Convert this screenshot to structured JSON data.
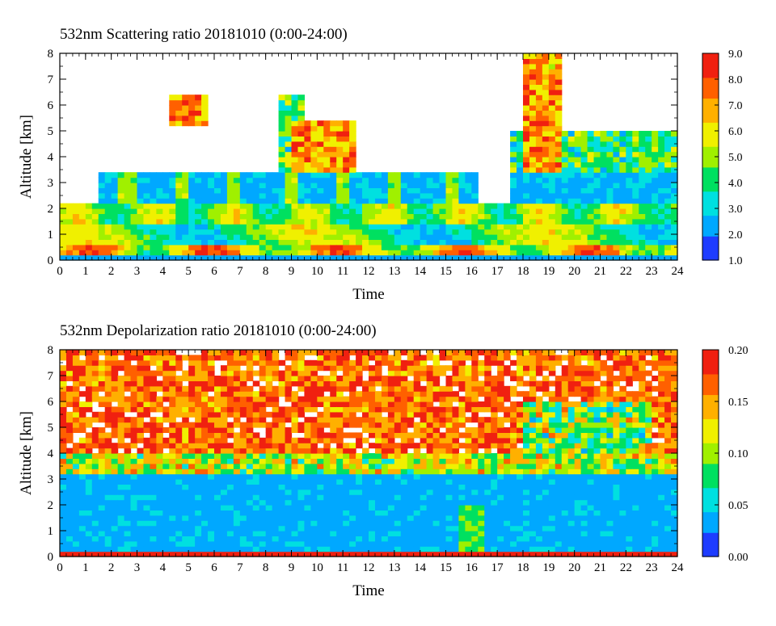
{
  "chart_data": [
    {
      "type": "heatmap",
      "title": "532nm Scattering ratio  20181010 (0:00-24:00)",
      "xlabel": "Time",
      "ylabel": "Altitude [km]",
      "x_ticks": [
        "0",
        "1",
        "2",
        "3",
        "4",
        "5",
        "6",
        "7",
        "8",
        "9",
        "10",
        "11",
        "12",
        "13",
        "14",
        "15",
        "16",
        "17",
        "18",
        "19",
        "20",
        "21",
        "22",
        "23",
        "24"
      ],
      "y_ticks": [
        "0",
        "1",
        "2",
        "3",
        "4",
        "5",
        "6",
        "7",
        "8"
      ],
      "xlim": [
        0,
        24
      ],
      "ylim": [
        0,
        8
      ],
      "colorbar": {
        "range": [
          1.0,
          9.0
        ],
        "tick_labels": [
          "1.0",
          "2.0",
          "3.0",
          "4.0",
          "5.0",
          "6.0",
          "7.0",
          "8.0",
          "9.0"
        ],
        "colors": [
          "#1e3cff",
          "#00a8ff",
          "#00e0e0",
          "#00e060",
          "#a0f000",
          "#f0f000",
          "#ffb000",
          "#ff6000",
          "#f02010"
        ]
      }
    },
    {
      "type": "heatmap",
      "title": "532nm Depolarization ratio  20181010 (0:00-24:00)",
      "xlabel": "Time",
      "ylabel": "Altitude [km]",
      "x_ticks": [
        "0",
        "1",
        "2",
        "3",
        "4",
        "5",
        "6",
        "7",
        "8",
        "9",
        "10",
        "11",
        "12",
        "13",
        "14",
        "15",
        "16",
        "17",
        "18",
        "19",
        "20",
        "21",
        "22",
        "23",
        "24"
      ],
      "y_ticks": [
        "0",
        "1",
        "2",
        "3",
        "4",
        "5",
        "6",
        "7",
        "8"
      ],
      "xlim": [
        0,
        24
      ],
      "ylim": [
        0,
        8
      ],
      "colorbar": {
        "range": [
          0.0,
          0.2
        ],
        "tick_labels": [
          "0.00",
          "0.05",
          "0.10",
          "0.15",
          "0.20"
        ],
        "colors": [
          "#1e3cff",
          "#00a8ff",
          "#00e0e0",
          "#00e060",
          "#a0f000",
          "#f0f000",
          "#ffb000",
          "#ff6000",
          "#f02010"
        ]
      }
    }
  ]
}
